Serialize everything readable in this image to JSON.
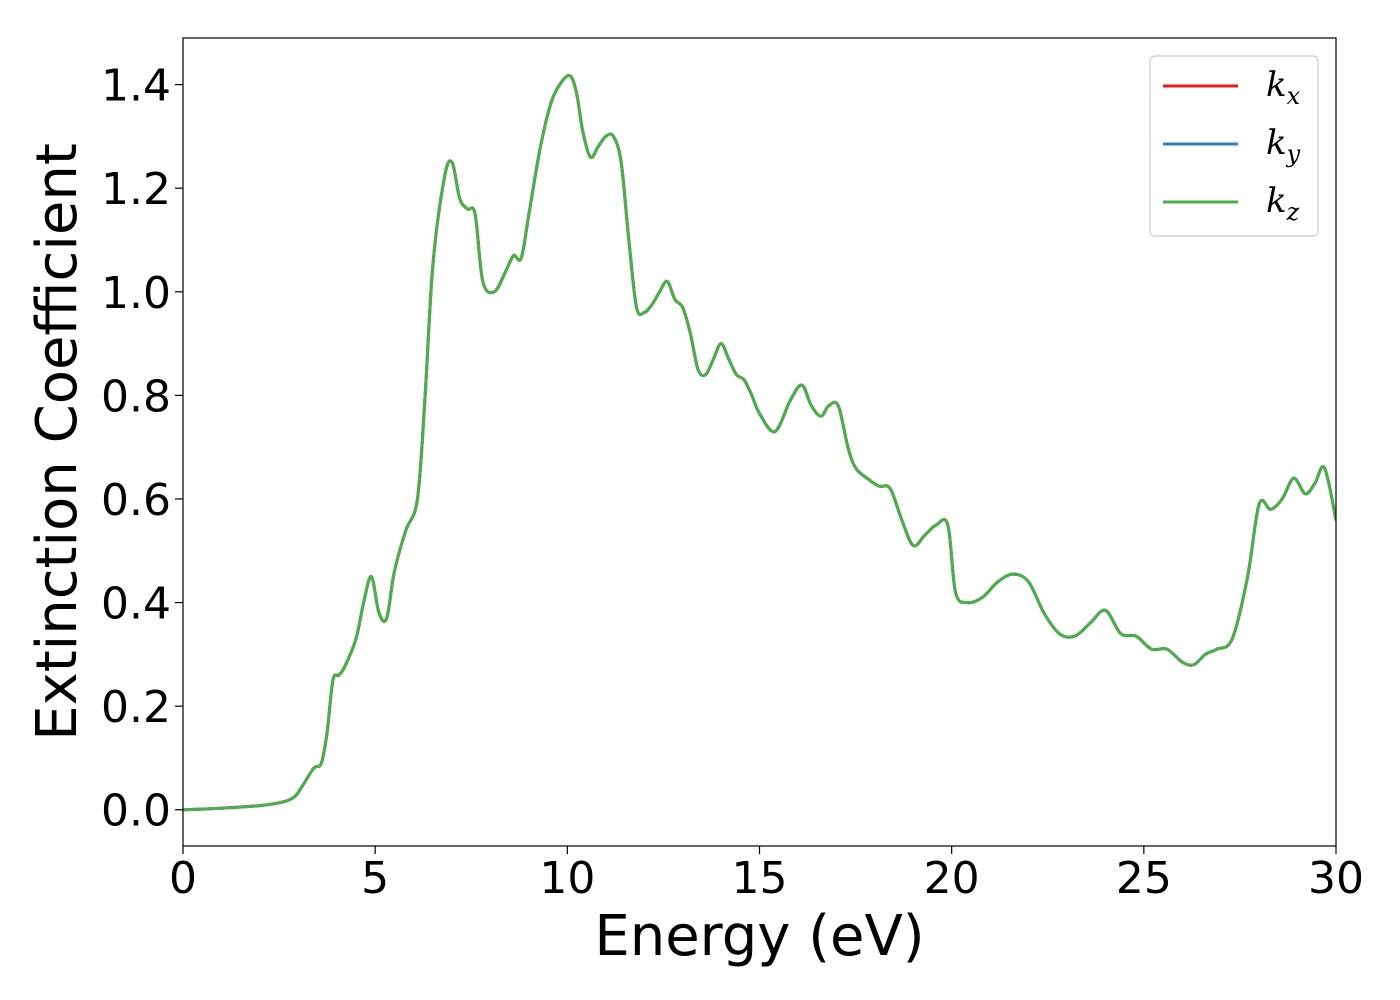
{
  "chart_data": {
    "type": "line",
    "xlabel": "Energy (eV)",
    "ylabel": "Extinction Coefficient",
    "xlim": [
      0,
      30
    ],
    "ylim": [
      -0.07,
      1.49
    ],
    "xticks": [
      "0",
      "5",
      "10",
      "15",
      "20",
      "25",
      "30"
    ],
    "yticks": [
      "0.0",
      "0.2",
      "0.4",
      "0.6",
      "0.8",
      "1.0",
      "1.2",
      "1.4"
    ],
    "grid": false,
    "legend_position": "top-right",
    "series": [
      {
        "name": "k_x",
        "label_base": "k",
        "label_sub": "x",
        "color": "#e41a1c",
        "x": [
          0,
          1,
          2,
          2.6,
          2.9,
          3.1,
          3.4,
          3.6,
          3.75,
          3.9,
          4.05,
          4.2,
          4.5,
          4.7,
          4.9,
          5.1,
          5.3,
          5.5,
          5.8,
          6.1,
          6.3,
          6.5,
          6.8,
          7.0,
          7.2,
          7.4,
          7.6,
          7.8,
          8.1,
          8.4,
          8.6,
          8.8,
          9.0,
          9.3,
          9.6,
          9.9,
          10.1,
          10.25,
          10.4,
          10.6,
          10.8,
          11.0,
          11.2,
          11.4,
          11.6,
          11.8,
          12.0,
          12.2,
          12.4,
          12.6,
          12.8,
          13.0,
          13.2,
          13.4,
          13.6,
          13.8,
          14.0,
          14.2,
          14.4,
          14.6,
          14.8,
          15.0,
          15.4,
          15.8,
          16.1,
          16.35,
          16.6,
          16.8,
          17.05,
          17.3,
          17.5,
          17.8,
          18.1,
          18.4,
          18.7,
          19.0,
          19.3,
          19.6,
          19.9,
          20.1,
          20.4,
          20.8,
          21.2,
          21.6,
          22.0,
          22.4,
          22.8,
          23.2,
          23.6,
          24.0,
          24.4,
          24.8,
          25.2,
          25.6,
          26.0,
          26.3,
          26.6,
          26.9,
          27.3,
          27.7,
          28.0,
          28.3,
          28.6,
          28.9,
          29.2,
          29.45,
          29.7,
          30
        ],
        "y": [
          0.0,
          0.003,
          0.008,
          0.015,
          0.025,
          0.045,
          0.08,
          0.09,
          0.15,
          0.25,
          0.26,
          0.275,
          0.33,
          0.4,
          0.45,
          0.38,
          0.37,
          0.46,
          0.54,
          0.6,
          0.8,
          1.05,
          1.22,
          1.25,
          1.18,
          1.16,
          1.15,
          1.02,
          1.0,
          1.04,
          1.07,
          1.065,
          1.15,
          1.28,
          1.37,
          1.41,
          1.415,
          1.38,
          1.31,
          1.26,
          1.28,
          1.3,
          1.3,
          1.25,
          1.1,
          0.97,
          0.96,
          0.975,
          1.0,
          1.02,
          0.985,
          0.97,
          0.92,
          0.85,
          0.84,
          0.87,
          0.9,
          0.87,
          0.84,
          0.83,
          0.8,
          0.765,
          0.73,
          0.79,
          0.82,
          0.78,
          0.76,
          0.78,
          0.78,
          0.7,
          0.66,
          0.64,
          0.625,
          0.62,
          0.56,
          0.51,
          0.53,
          0.55,
          0.55,
          0.42,
          0.4,
          0.41,
          0.44,
          0.455,
          0.44,
          0.38,
          0.34,
          0.335,
          0.36,
          0.385,
          0.34,
          0.335,
          0.31,
          0.31,
          0.285,
          0.28,
          0.3,
          0.31,
          0.33,
          0.45,
          0.59,
          0.58,
          0.6,
          0.64,
          0.61,
          0.63,
          0.66,
          0.56
        ]
      },
      {
        "name": "k_y",
        "label_base": "k",
        "label_sub": "y",
        "color": "#377eb8",
        "x": [
          0,
          1,
          2,
          2.6,
          2.9,
          3.1,
          3.4,
          3.6,
          3.75,
          3.9,
          4.05,
          4.2,
          4.5,
          4.7,
          4.9,
          5.1,
          5.3,
          5.5,
          5.8,
          6.1,
          6.3,
          6.5,
          6.8,
          7.0,
          7.2,
          7.4,
          7.6,
          7.8,
          8.1,
          8.4,
          8.6,
          8.8,
          9.0,
          9.3,
          9.6,
          9.9,
          10.1,
          10.25,
          10.4,
          10.6,
          10.8,
          11.0,
          11.2,
          11.4,
          11.6,
          11.8,
          12.0,
          12.2,
          12.4,
          12.6,
          12.8,
          13.0,
          13.2,
          13.4,
          13.6,
          13.8,
          14.0,
          14.2,
          14.4,
          14.6,
          14.8,
          15.0,
          15.4,
          15.8,
          16.1,
          16.35,
          16.6,
          16.8,
          17.05,
          17.3,
          17.5,
          17.8,
          18.1,
          18.4,
          18.7,
          19.0,
          19.3,
          19.6,
          19.9,
          20.1,
          20.4,
          20.8,
          21.2,
          21.6,
          22.0,
          22.4,
          22.8,
          23.2,
          23.6,
          24.0,
          24.4,
          24.8,
          25.2,
          25.6,
          26.0,
          26.3,
          26.6,
          26.9,
          27.3,
          27.7,
          28.0,
          28.3,
          28.6,
          28.9,
          29.2,
          29.45,
          29.7,
          30
        ],
        "y": [
          0.0,
          0.003,
          0.008,
          0.015,
          0.025,
          0.045,
          0.08,
          0.09,
          0.15,
          0.25,
          0.26,
          0.275,
          0.33,
          0.4,
          0.45,
          0.38,
          0.37,
          0.46,
          0.54,
          0.6,
          0.8,
          1.05,
          1.22,
          1.25,
          1.18,
          1.16,
          1.15,
          1.02,
          1.0,
          1.04,
          1.07,
          1.065,
          1.15,
          1.28,
          1.37,
          1.41,
          1.415,
          1.38,
          1.31,
          1.26,
          1.28,
          1.3,
          1.3,
          1.25,
          1.1,
          0.97,
          0.96,
          0.975,
          1.0,
          1.02,
          0.985,
          0.97,
          0.92,
          0.85,
          0.84,
          0.87,
          0.9,
          0.87,
          0.84,
          0.83,
          0.8,
          0.765,
          0.73,
          0.79,
          0.82,
          0.78,
          0.76,
          0.78,
          0.78,
          0.7,
          0.66,
          0.64,
          0.625,
          0.62,
          0.56,
          0.51,
          0.53,
          0.55,
          0.55,
          0.42,
          0.4,
          0.41,
          0.44,
          0.455,
          0.44,
          0.38,
          0.34,
          0.335,
          0.36,
          0.385,
          0.34,
          0.335,
          0.31,
          0.31,
          0.285,
          0.28,
          0.3,
          0.31,
          0.33,
          0.45,
          0.59,
          0.58,
          0.6,
          0.64,
          0.61,
          0.63,
          0.66,
          0.56
        ]
      },
      {
        "name": "k_z",
        "label_base": "k",
        "label_sub": "z",
        "color": "#4daf4a",
        "x": [
          0,
          1,
          2,
          2.6,
          2.9,
          3.1,
          3.4,
          3.6,
          3.75,
          3.9,
          4.05,
          4.2,
          4.5,
          4.7,
          4.9,
          5.1,
          5.3,
          5.5,
          5.8,
          6.1,
          6.3,
          6.5,
          6.8,
          7.0,
          7.2,
          7.4,
          7.6,
          7.8,
          8.1,
          8.4,
          8.6,
          8.8,
          9.0,
          9.3,
          9.6,
          9.9,
          10.1,
          10.25,
          10.4,
          10.6,
          10.8,
          11.0,
          11.2,
          11.4,
          11.6,
          11.8,
          12.0,
          12.2,
          12.4,
          12.6,
          12.8,
          13.0,
          13.2,
          13.4,
          13.6,
          13.8,
          14.0,
          14.2,
          14.4,
          14.6,
          14.8,
          15.0,
          15.4,
          15.8,
          16.1,
          16.35,
          16.6,
          16.8,
          17.05,
          17.3,
          17.5,
          17.8,
          18.1,
          18.4,
          18.7,
          19.0,
          19.3,
          19.6,
          19.9,
          20.1,
          20.4,
          20.8,
          21.2,
          21.6,
          22.0,
          22.4,
          22.8,
          23.2,
          23.6,
          24.0,
          24.4,
          24.8,
          25.2,
          25.6,
          26.0,
          26.3,
          26.6,
          26.9,
          27.3,
          27.7,
          28.0,
          28.3,
          28.6,
          28.9,
          29.2,
          29.45,
          29.7,
          30
        ],
        "y": [
          0.0,
          0.003,
          0.008,
          0.015,
          0.025,
          0.045,
          0.08,
          0.09,
          0.15,
          0.25,
          0.26,
          0.275,
          0.33,
          0.4,
          0.45,
          0.38,
          0.37,
          0.46,
          0.54,
          0.6,
          0.8,
          1.05,
          1.22,
          1.25,
          1.18,
          1.16,
          1.15,
          1.02,
          1.0,
          1.04,
          1.07,
          1.065,
          1.15,
          1.28,
          1.37,
          1.41,
          1.415,
          1.38,
          1.31,
          1.26,
          1.28,
          1.3,
          1.3,
          1.25,
          1.1,
          0.97,
          0.96,
          0.975,
          1.0,
          1.02,
          0.985,
          0.97,
          0.92,
          0.85,
          0.84,
          0.87,
          0.9,
          0.87,
          0.84,
          0.83,
          0.8,
          0.765,
          0.73,
          0.79,
          0.82,
          0.78,
          0.76,
          0.78,
          0.78,
          0.7,
          0.66,
          0.64,
          0.625,
          0.62,
          0.56,
          0.51,
          0.53,
          0.55,
          0.55,
          0.42,
          0.4,
          0.41,
          0.44,
          0.455,
          0.44,
          0.38,
          0.34,
          0.335,
          0.36,
          0.385,
          0.34,
          0.335,
          0.31,
          0.31,
          0.285,
          0.28,
          0.3,
          0.31,
          0.33,
          0.45,
          0.59,
          0.58,
          0.6,
          0.64,
          0.61,
          0.63,
          0.66,
          0.56
        ]
      }
    ]
  }
}
